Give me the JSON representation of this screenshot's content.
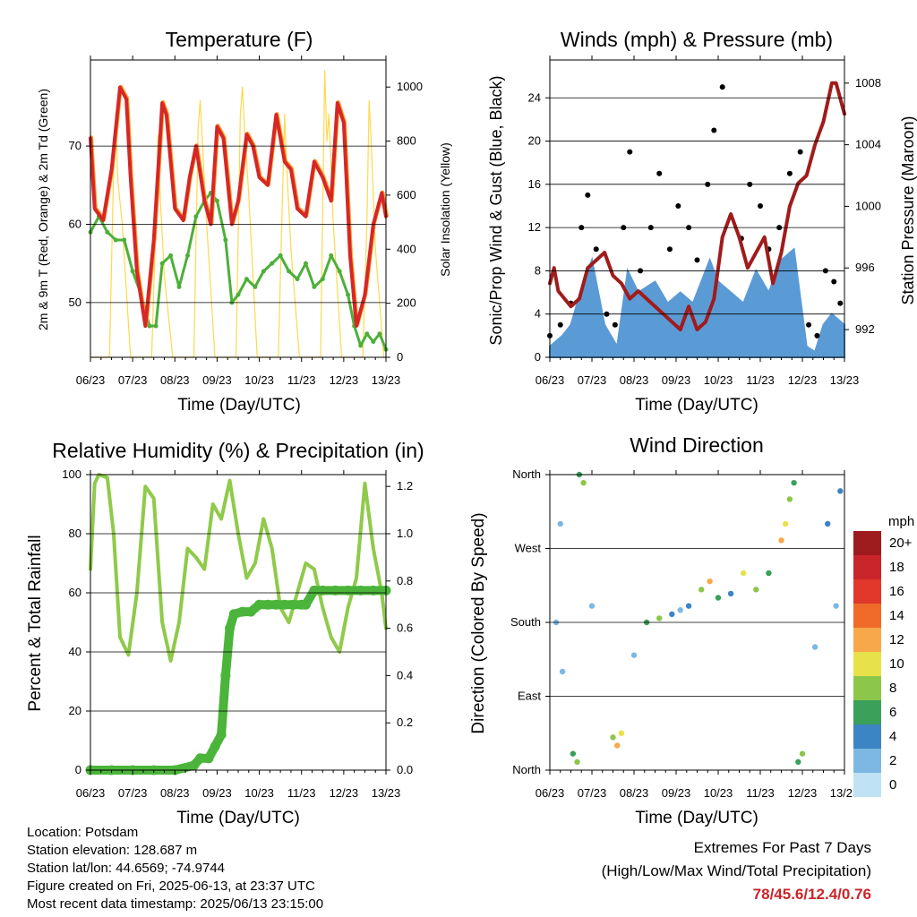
{
  "temperature": {
    "title": "Temperature (F)",
    "ylabel_left": "2m & 9m T (Red, Orange) & 2m Td (Green)",
    "ylabel_right": "Solar Insolation (Yellow)",
    "xlabel": "Time (Day/UTC)"
  },
  "winds": {
    "title": "Winds (mph) & Pressure (mb)",
    "ylabel_left": "Sonic/Prop Wind & Gust (Blue, Black)",
    "ylabel_right": "Station Pressure (Maroon)",
    "xlabel": "Time (Day/UTC)"
  },
  "humidity": {
    "title": "Relative Humidity (%) & Precipitation (in)",
    "ylabel_left": "Percent & Total Rainfall",
    "xlabel": "Time (Day/UTC)"
  },
  "direction": {
    "title": "Wind Direction",
    "ylabel_left": "Direction (Colored By Speed)",
    "xlabel": "Time (Day/UTC)",
    "legend_title": "mph"
  },
  "info": {
    "location": "Location: Potsdam",
    "elevation": "Station elevation: 128.687 m",
    "latlon": "Station lat/lon: 44.6569; -74.9744",
    "created": "Figure created on Fri, 2025-06-13, at 23:37 UTC",
    "recent": "Most recent data timestamp: 2025/06/13 23:15:00"
  },
  "extremes": {
    "line1": "Extremes For Past 7 Days",
    "line2": "(High/Low/Max Wind/Total Precipitation)",
    "values": "78/45.6/12.4/0.76"
  },
  "colors": {
    "temp2m": "#d62728",
    "temp9m": "#ff9e1f",
    "dewpoint": "#4daf3a",
    "solar": "#ffd84d",
    "wind": "#5b9bd5",
    "gust": "#000000",
    "pressure": "#a01c1c",
    "rh": "#8fca4a",
    "precip": "#4bb43a"
  },
  "chart_data": [
    {
      "type": "line",
      "panel": "temperature",
      "xticks": [
        "06/23",
        "07/23",
        "08/23",
        "09/23",
        "10/23",
        "11/23",
        "12/23",
        "13/23"
      ],
      "xlim": [
        0,
        7
      ],
      "ylim": [
        43,
        81
      ],
      "yticks": [
        50,
        60,
        70
      ],
      "y2lim": [
        0,
        1100
      ],
      "y2ticks": [
        0,
        200,
        400,
        600,
        800,
        1000
      ],
      "series": [
        {
          "name": "2m T",
          "color": "#d62728",
          "axis": "left",
          "x": [
            0,
            0.1,
            0.3,
            0.5,
            0.7,
            0.85,
            0.95,
            1.1,
            1.3,
            1.5,
            1.7,
            1.8,
            2.0,
            2.2,
            2.35,
            2.5,
            2.7,
            2.85,
            3.0,
            3.15,
            3.35,
            3.5,
            3.7,
            3.85,
            4.0,
            4.2,
            4.4,
            4.6,
            4.75,
            4.9,
            5.1,
            5.3,
            5.5,
            5.7,
            5.85,
            6.0,
            6.15,
            6.3,
            6.5,
            6.7,
            6.9,
            7.0
          ],
          "y": [
            71,
            62,
            60.5,
            67,
            77.5,
            76,
            66,
            54,
            47,
            58,
            75.5,
            74,
            62,
            60.5,
            66,
            70,
            63,
            60,
            72.5,
            71,
            60,
            63,
            71.5,
            70,
            66,
            65,
            74,
            68,
            67,
            62,
            61,
            68,
            66,
            63,
            75.5,
            73,
            56,
            47,
            51,
            60,
            64,
            61
          ]
        },
        {
          "name": "Td",
          "color": "#4daf3a",
          "axis": "left",
          "x": [
            0,
            0.2,
            0.4,
            0.6,
            0.8,
            1.0,
            1.2,
            1.4,
            1.55,
            1.7,
            1.9,
            2.1,
            2.3,
            2.5,
            2.7,
            2.85,
            3.0,
            3.2,
            3.35,
            3.5,
            3.7,
            3.9,
            4.1,
            4.3,
            4.5,
            4.7,
            4.9,
            5.1,
            5.3,
            5.5,
            5.7,
            5.9,
            6.1,
            6.25,
            6.4,
            6.55,
            6.7,
            6.85,
            7.0
          ],
          "y": [
            59,
            61,
            59,
            58,
            58,
            54,
            51,
            47,
            47,
            55,
            56,
            52,
            56,
            61,
            63,
            64,
            63,
            58,
            50,
            51,
            53,
            52,
            54,
            55,
            56,
            54,
            53,
            55,
            52,
            53,
            56,
            54,
            51,
            47,
            44.5,
            46,
            45,
            46,
            44
          ]
        },
        {
          "name": "Solar",
          "color": "#ffd84d",
          "axis": "right",
          "x": [
            0.0,
            0.45,
            0.55,
            0.6,
            0.65,
            0.75,
            0.95,
            1.45,
            1.55,
            1.6,
            1.65,
            1.75,
            1.95,
            2.45,
            2.55,
            2.6,
            2.65,
            2.75,
            2.95,
            3.45,
            3.55,
            3.6,
            3.65,
            3.75,
            3.95,
            4.45,
            4.55,
            4.6,
            4.65,
            4.75,
            4.95,
            5.45,
            5.55,
            5.6,
            5.65,
            5.75,
            5.95,
            6.45,
            6.55,
            6.6,
            6.65,
            6.75,
            6.95,
            7.0
          ],
          "y": [
            0,
            0,
            700,
            900,
            650,
            500,
            0,
            0,
            500,
            820,
            600,
            300,
            0,
            0,
            850,
            950,
            800,
            500,
            0,
            0,
            900,
            1000,
            850,
            600,
            0,
            0,
            600,
            900,
            700,
            400,
            0,
            0,
            1060,
            800,
            900,
            500,
            0,
            0,
            500,
            950,
            800,
            400,
            0,
            0
          ]
        }
      ]
    },
    {
      "type": "scatter",
      "panel": "winds",
      "xticks": [
        "06/23",
        "07/23",
        "08/23",
        "09/23",
        "10/23",
        "11/23",
        "12/23",
        "13/23"
      ],
      "xlim": [
        0,
        7
      ],
      "ylim": [
        0,
        27.5
      ],
      "yticks": [
        0,
        4,
        8,
        12,
        16,
        20,
        24
      ],
      "y2lim": [
        990.2,
        1009.5
      ],
      "y2ticks": [
        992,
        996,
        1000,
        1004,
        1008
      ],
      "series": [
        {
          "name": "Wind",
          "color": "#5b9bd5",
          "axis": "left",
          "x": [
            0,
            0.3,
            0.5,
            0.8,
            1.0,
            1.3,
            1.6,
            1.85,
            2.1,
            2.5,
            2.8,
            3.1,
            3.4,
            3.8,
            4.0,
            4.3,
            4.6,
            4.9,
            5.2,
            5.5,
            5.8,
            6.1,
            6.3,
            6.5,
            6.7,
            7.0
          ],
          "y": [
            1,
            2,
            3,
            7,
            9,
            3,
            1,
            8,
            6,
            7,
            5,
            6,
            5,
            9,
            7,
            6,
            5,
            8,
            6,
            9,
            10,
            1,
            0.5,
            3,
            4,
            3
          ]
        },
        {
          "name": "Gust",
          "color": "#000000",
          "axis": "left",
          "x": [
            0,
            0.25,
            0.5,
            0.75,
            0.9,
            1.1,
            1.35,
            1.55,
            1.75,
            1.9,
            2.15,
            2.4,
            2.6,
            2.85,
            3.05,
            3.3,
            3.5,
            3.75,
            3.9,
            4.1,
            4.3,
            4.55,
            4.75,
            5.0,
            5.2,
            5.45,
            5.7,
            5.95,
            6.15,
            6.35,
            6.55,
            6.75,
            6.9
          ],
          "y": [
            2,
            3,
            5,
            12,
            15,
            10,
            4,
            3,
            12,
            19,
            8,
            12,
            17,
            10,
            14,
            12,
            9,
            16,
            21,
            25,
            13,
            11,
            16,
            14,
            10,
            12,
            17,
            19,
            3,
            2,
            8,
            7,
            5
          ]
        },
        {
          "name": "Pressure",
          "color": "#a01c1c",
          "axis": "right",
          "x": [
            0,
            0.1,
            0.2,
            0.35,
            0.5,
            0.7,
            0.9,
            1.1,
            1.3,
            1.5,
            1.7,
            1.9,
            2.1,
            2.3,
            2.5,
            2.7,
            2.9,
            3.1,
            3.3,
            3.5,
            3.7,
            3.9,
            4.1,
            4.3,
            4.5,
            4.7,
            4.9,
            5.1,
            5.3,
            5.5,
            5.7,
            5.9,
            6.1,
            6.3,
            6.5,
            6.7,
            6.8,
            6.9,
            7.0
          ],
          "y": [
            995,
            996,
            994.5,
            994,
            993.5,
            994,
            996,
            996.5,
            997,
            995.5,
            995,
            994,
            994.5,
            994,
            993.5,
            993,
            992.5,
            992,
            993.5,
            992,
            992.5,
            994,
            998,
            999.5,
            998,
            996,
            997,
            998,
            995,
            997,
            1000,
            1001.5,
            1002,
            1004,
            1005.5,
            1008,
            1008,
            1007,
            1006
          ]
        }
      ]
    },
    {
      "type": "line",
      "panel": "humidity",
      "xticks": [
        "06/23",
        "07/23",
        "08/23",
        "09/23",
        "10/23",
        "11/23",
        "12/23",
        "13/23"
      ],
      "xlim": [
        0,
        7
      ],
      "ylim": [
        0,
        100
      ],
      "yticks": [
        0,
        20,
        40,
        60,
        80,
        100
      ],
      "y2lim": [
        0,
        1.25
      ],
      "y2ticks": [
        0.0,
        0.2,
        0.4,
        0.6,
        0.8,
        1.0,
        1.2
      ],
      "series": [
        {
          "name": "RH",
          "color": "#8fca4a",
          "axis": "left",
          "x": [
            0,
            0.1,
            0.2,
            0.4,
            0.55,
            0.7,
            0.9,
            1.1,
            1.3,
            1.5,
            1.7,
            1.9,
            2.1,
            2.3,
            2.5,
            2.7,
            2.9,
            3.1,
            3.3,
            3.5,
            3.7,
            3.9,
            4.1,
            4.3,
            4.5,
            4.7,
            4.9,
            5.1,
            5.3,
            5.5,
            5.7,
            5.9,
            6.1,
            6.3,
            6.5,
            6.7,
            6.9,
            7.0
          ],
          "y": [
            68,
            97,
            100,
            99,
            80,
            45,
            39,
            60,
            96,
            92,
            50,
            37,
            50,
            75,
            72,
            68,
            90,
            85,
            98,
            80,
            65,
            70,
            85,
            75,
            55,
            50,
            60,
            70,
            68,
            55,
            45,
            40,
            55,
            65,
            97,
            75,
            60,
            48
          ]
        },
        {
          "name": "Precip",
          "color": "#4bb43a",
          "axis": "right",
          "x": [
            0,
            0.5,
            1.0,
            1.5,
            2.0,
            2.45,
            2.6,
            2.8,
            2.95,
            3.1,
            3.2,
            3.3,
            3.4,
            3.6,
            3.8,
            4.0,
            4.2,
            4.4,
            4.6,
            4.8,
            5.0,
            5.1,
            5.3,
            5.5,
            5.8,
            6.1,
            6.4,
            6.7,
            7.0
          ],
          "y": [
            0,
            0,
            0,
            0,
            0,
            0.02,
            0.05,
            0.05,
            0.1,
            0.15,
            0.4,
            0.6,
            0.66,
            0.67,
            0.67,
            0.7,
            0.7,
            0.7,
            0.7,
            0.7,
            0.7,
            0.7,
            0.76,
            0.76,
            0.76,
            0.76,
            0.76,
            0.76,
            0.76
          ]
        }
      ]
    },
    {
      "type": "scatter",
      "panel": "direction",
      "xticks": [
        "06/23",
        "07/23",
        "08/23",
        "09/23",
        "10/23",
        "11/23",
        "12/23",
        "13/23"
      ],
      "xlim": [
        0,
        7
      ],
      "ylim": [
        0,
        360
      ],
      "yticks": [
        "North",
        "East",
        "South",
        "West",
        "North"
      ],
      "ytick_values": [
        0,
        90,
        180,
        270,
        360
      ],
      "legend_levels": [
        "20+",
        "18",
        "16",
        "14",
        "12",
        "10",
        "8",
        "6",
        "4",
        "2",
        "0"
      ],
      "legend_colors": [
        "#9e1b1e",
        "#c9252b",
        "#e0382a",
        "#f06a2a",
        "#f7a84a",
        "#e8e24a",
        "#8cc64a",
        "#3aa05a",
        "#3d84c4",
        "#7db8e3",
        "#bfe3f5"
      ],
      "points": [
        {
          "x": 0.15,
          "y": 180,
          "speed": 1
        },
        {
          "x": 0.25,
          "y": 300,
          "speed": 1
        },
        {
          "x": 0.3,
          "y": 120,
          "speed": 2
        },
        {
          "x": 0.55,
          "y": 20,
          "speed": 6
        },
        {
          "x": 0.65,
          "y": 10,
          "speed": 8
        },
        {
          "x": 0.7,
          "y": 360,
          "speed": 6
        },
        {
          "x": 0.8,
          "y": 350,
          "speed": 8
        },
        {
          "x": 1.0,
          "y": 200,
          "speed": 1
        },
        {
          "x": 1.5,
          "y": 40,
          "speed": 8
        },
        {
          "x": 1.6,
          "y": 30,
          "speed": 12
        },
        {
          "x": 1.7,
          "y": 45,
          "speed": 10
        },
        {
          "x": 2.0,
          "y": 140,
          "speed": 2
        },
        {
          "x": 2.3,
          "y": 180,
          "speed": 6
        },
        {
          "x": 2.6,
          "y": 185,
          "speed": 8
        },
        {
          "x": 2.9,
          "y": 190,
          "speed": 4
        },
        {
          "x": 3.1,
          "y": 195,
          "speed": 2
        },
        {
          "x": 3.3,
          "y": 200,
          "speed": 4
        },
        {
          "x": 3.6,
          "y": 220,
          "speed": 8
        },
        {
          "x": 3.8,
          "y": 230,
          "speed": 12
        },
        {
          "x": 4.0,
          "y": 210,
          "speed": 6
        },
        {
          "x": 4.3,
          "y": 215,
          "speed": 4
        },
        {
          "x": 4.6,
          "y": 240,
          "speed": 10
        },
        {
          "x": 4.9,
          "y": 220,
          "speed": 8
        },
        {
          "x": 5.2,
          "y": 240,
          "speed": 6
        },
        {
          "x": 5.5,
          "y": 280,
          "speed": 12
        },
        {
          "x": 5.6,
          "y": 300,
          "speed": 10
        },
        {
          "x": 5.7,
          "y": 330,
          "speed": 8
        },
        {
          "x": 5.8,
          "y": 350,
          "speed": 6
        },
        {
          "x": 5.9,
          "y": 10,
          "speed": 6
        },
        {
          "x": 6.0,
          "y": 20,
          "speed": 8
        },
        {
          "x": 6.3,
          "y": 150,
          "speed": 2
        },
        {
          "x": 6.6,
          "y": 300,
          "speed": 4
        },
        {
          "x": 6.8,
          "y": 200,
          "speed": 2
        },
        {
          "x": 6.9,
          "y": 340,
          "speed": 4
        }
      ]
    }
  ]
}
